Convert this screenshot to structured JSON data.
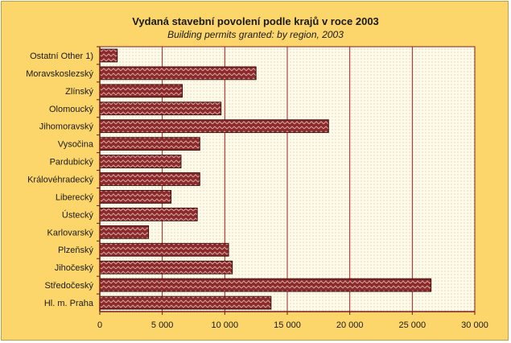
{
  "chart_data": {
    "type": "bar",
    "orientation": "horizontal",
    "title": "Vydaná stavební povolení podle krajů v roce 2003",
    "subtitle": "Building permits granted: by region, 2003",
    "categories": [
      "Ostatní  Other 1)",
      "Moravskoslezský",
      "Zlínský",
      "Olomoucký",
      "Jihomoravský",
      "Vysočina",
      "Pardubický",
      "Královéhradecký",
      "Liberecký",
      "Ústecký",
      "Karlovarský",
      "Plzeňský",
      "Jihočeský",
      "Středočeský",
      "Hl. m. Praha"
    ],
    "values": [
      1400,
      12500,
      6600,
      9700,
      18300,
      8000,
      6500,
      8000,
      5700,
      7800,
      3900,
      10300,
      10600,
      26500,
      13700
    ],
    "xlim": [
      0,
      30000
    ],
    "xticks": [
      0,
      5000,
      10000,
      15000,
      20000,
      25000,
      30000
    ],
    "xtick_labels": [
      "0",
      "5 000",
      "10 000",
      "15 000",
      "20 000",
      "25 000",
      "30 000"
    ],
    "grid": "vertical",
    "colors": {
      "background": "#fcd66a",
      "plot_area": "#fffbea",
      "bar_fill": "#8b2a2a",
      "bar_pattern": "#d9a3a3",
      "gridline": "#a31d1d"
    }
  }
}
